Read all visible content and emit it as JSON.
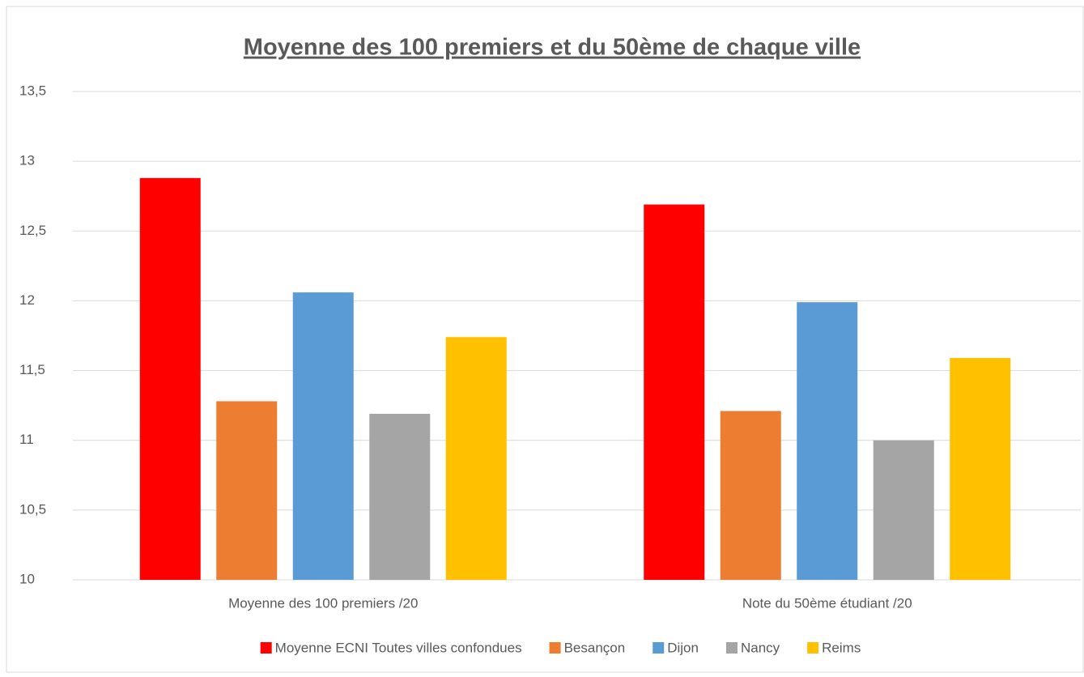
{
  "chart_data": {
    "type": "bar",
    "title": "Moyenne des 100 premiers et du 50ème de chaque ville",
    "categories": [
      "Moyenne des 100 premiers /20",
      "Note du 50ème étudiant /20"
    ],
    "series": [
      {
        "name": "Moyenne ECNI Toutes villes confondues",
        "color": "#ff0000",
        "values": [
          12.88,
          12.69
        ]
      },
      {
        "name": "Besançon",
        "color": "#ed7d31",
        "values": [
          11.28,
          11.21
        ]
      },
      {
        "name": "Dijon",
        "color": "#5b9bd5",
        "values": [
          12.06,
          11.99
        ]
      },
      {
        "name": "Nancy",
        "color": "#a5a5a5",
        "values": [
          11.19,
          11.0
        ]
      },
      {
        "name": "Reims",
        "color": "#ffc000",
        "values": [
          11.74,
          11.59
        ]
      }
    ],
    "ylim": [
      10,
      13.5
    ],
    "yticks": [
      10,
      {
        "value": 10.5,
        "label": "10,5"
      },
      11,
      {
        "value": 11.5,
        "label": "11,5"
      },
      12,
      {
        "value": 12.5,
        "label": "12,5"
      },
      13,
      {
        "value": 13.5,
        "label": "13,5"
      }
    ],
    "grid": true,
    "legend": "bottom"
  }
}
